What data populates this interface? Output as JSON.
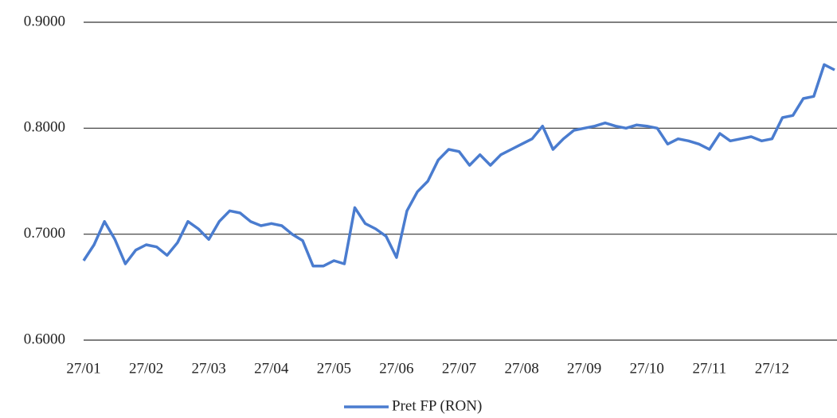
{
  "chart_data": {
    "type": "line",
    "categories": [
      "27/01",
      null,
      null,
      null,
      null,
      null,
      "27/02",
      null,
      null,
      null,
      null,
      null,
      "27/03",
      null,
      null,
      null,
      null,
      null,
      "27/04",
      null,
      null,
      null,
      null,
      null,
      "27/05",
      null,
      null,
      null,
      null,
      null,
      "27/06",
      null,
      null,
      null,
      null,
      null,
      "27/07",
      null,
      null,
      null,
      null,
      null,
      "27/08",
      null,
      null,
      null,
      null,
      null,
      "27/09",
      null,
      null,
      null,
      null,
      null,
      "27/10",
      null,
      null,
      null,
      null,
      null,
      "27/11",
      null,
      null,
      null,
      null,
      null,
      "27/12",
      null,
      null,
      null,
      null,
      null,
      null
    ],
    "series": [
      {
        "name": "Pret FP (RON)",
        "color": "#4a7ccf",
        "values": [
          0.675,
          0.69,
          0.712,
          0.695,
          0.672,
          0.685,
          0.69,
          0.688,
          0.68,
          0.692,
          0.712,
          0.705,
          0.695,
          0.712,
          0.722,
          0.72,
          0.712,
          0.708,
          0.71,
          0.708,
          0.7,
          0.694,
          0.67,
          0.67,
          0.675,
          0.672,
          0.725,
          0.71,
          0.705,
          0.698,
          0.678,
          0.722,
          0.74,
          0.75,
          0.77,
          0.78,
          0.778,
          0.765,
          0.775,
          0.765,
          0.775,
          0.78,
          0.785,
          0.79,
          0.802,
          0.78,
          0.79,
          0.798,
          0.8,
          0.802,
          0.805,
          0.802,
          0.8,
          0.803,
          0.802,
          0.8,
          0.785,
          0.79,
          0.788,
          0.785,
          0.78,
          0.795,
          0.788,
          0.79,
          0.792,
          0.788,
          0.79,
          0.81,
          0.812,
          0.828,
          0.83,
          0.86,
          0.855
        ]
      }
    ],
    "ylim": [
      0.6,
      0.9
    ],
    "yticks": [
      {
        "value": 0.6,
        "label": "0.6000"
      },
      {
        "value": 0.7,
        "label": "0.7000"
      },
      {
        "value": 0.8,
        "label": "0.8000"
      },
      {
        "value": 0.9,
        "label": "0.9000"
      }
    ],
    "grid": true,
    "legend": "bottom"
  }
}
